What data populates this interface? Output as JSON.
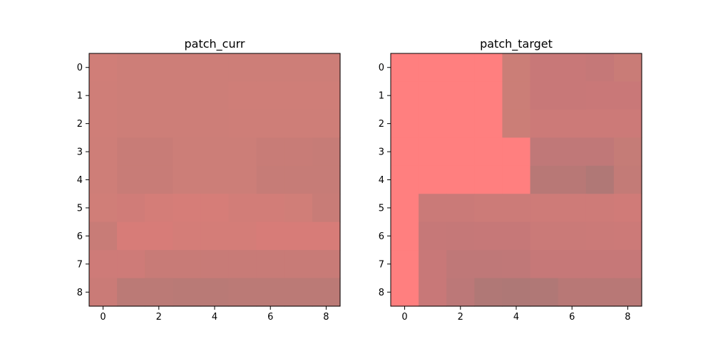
{
  "chart_data": [
    {
      "type": "heatmap",
      "title": "patch_curr",
      "x_ticks": [
        "0",
        "2",
        "4",
        "6",
        "8"
      ],
      "y_ticks": [
        "0",
        "1",
        "2",
        "3",
        "4",
        "5",
        "6",
        "7",
        "8"
      ],
      "xlim": [
        -0.5,
        8.5
      ],
      "ylim": [
        8.5,
        -0.5
      ],
      "grid": false,
      "cell_colors": [
        [
          "#d07e78",
          "#cd7e78",
          "#cd7e78",
          "#cd7e78",
          "#cd7e78",
          "#cd7e78",
          "#cd7e78",
          "#cd7e78",
          "#cd7e78"
        ],
        [
          "#cf7e78",
          "#cd7e78",
          "#cd7e78",
          "#cd7e78",
          "#cd7e78",
          "#cf7e78",
          "#cf7e78",
          "#cf7e78",
          "#cf7e78"
        ],
        [
          "#cf7e78",
          "#cd7e78",
          "#cd7e78",
          "#cd7e78",
          "#cd7e78",
          "#ce7e78",
          "#ce7e78",
          "#ce7e78",
          "#ce7e78"
        ],
        [
          "#ce7e78",
          "#c87c77",
          "#c87c77",
          "#cc7e78",
          "#cc7e78",
          "#cc7e78",
          "#c87c77",
          "#c87c77",
          "#c67c77"
        ],
        [
          "#ce7e78",
          "#c87c77",
          "#c87c77",
          "#cc7e78",
          "#cc7e78",
          "#cc7e78",
          "#c67c77",
          "#c67c77",
          "#c67c77"
        ],
        [
          "#d07e78",
          "#d07c78",
          "#d47d78",
          "#d67d78",
          "#d67d78",
          "#d27d78",
          "#d27d78",
          "#d07e78",
          "#c87c77"
        ],
        [
          "#c87c77",
          "#d77c78",
          "#d77c78",
          "#d47d78",
          "#d47d78",
          "#d47d78",
          "#d77c78",
          "#d77c78",
          "#d77c78"
        ],
        [
          "#ce7b78",
          "#ce7b78",
          "#c87b77",
          "#c87b77",
          "#c87b77",
          "#c87b77",
          "#c87b77",
          "#c87b77",
          "#c87b77"
        ],
        [
          "#ca7b77",
          "#bb7a76",
          "#bb7a76",
          "#b97a76",
          "#b97a76",
          "#bb7a76",
          "#bb7a76",
          "#bb7a76",
          "#bb7a76"
        ]
      ]
    },
    {
      "type": "heatmap",
      "title": "patch_target",
      "x_ticks": [
        "0",
        "2",
        "4",
        "6",
        "8"
      ],
      "y_ticks": [
        "0",
        "1",
        "2",
        "3",
        "4",
        "5",
        "6",
        "7",
        "8"
      ],
      "xlim": [
        -0.5,
        8.5
      ],
      "ylim": [
        8.5,
        -0.5
      ],
      "grid": false,
      "cell_colors": [
        [
          "#ff7f7f",
          "#ff7f7f",
          "#ff7f7f",
          "#ff7f7f",
          "#cb7e77",
          "#c87878",
          "#c87878",
          "#c57878",
          "#c97c77"
        ],
        [
          "#ff7f7f",
          "#ff7f7f",
          "#ff7f7f",
          "#ff7f7f",
          "#cb7e77",
          "#c87878",
          "#c87878",
          "#c97878",
          "#c97878"
        ],
        [
          "#ff7f7f",
          "#ff7f7f",
          "#ff7f7f",
          "#ff7f7f",
          "#cb7e77",
          "#cc7a78",
          "#cc7a78",
          "#cc7a78",
          "#cc7a78"
        ],
        [
          "#ff7f7f",
          "#ff7f7f",
          "#ff7f7f",
          "#ff7f7f",
          "#ff7f7f",
          "#c07878",
          "#c07878",
          "#c07878",
          "#c57c77"
        ],
        [
          "#ff7f7f",
          "#ff7f7f",
          "#ff7f7f",
          "#ff7f7f",
          "#ff7f7f",
          "#b87876",
          "#b87876",
          "#b07876",
          "#c37b77"
        ],
        [
          "#ff7f7f",
          "#ca7a78",
          "#ca7a78",
          "#cc7b78",
          "#cc7b78",
          "#ce7b78",
          "#ce7b78",
          "#ce7b78",
          "#d07b78"
        ],
        [
          "#ff7f7f",
          "#c67878",
          "#c57878",
          "#c67878",
          "#c67878",
          "#ca7a78",
          "#ca7a78",
          "#cb7a78",
          "#cc7a78"
        ],
        [
          "#ff7f7f",
          "#c87878",
          "#bf7878",
          "#bf7878",
          "#c07878",
          "#c67878",
          "#c67878",
          "#c67878",
          "#c67878"
        ],
        [
          "#ff7f7f",
          "#c87878",
          "#bc7878",
          "#b07876",
          "#ae7876",
          "#b07876",
          "#b87876",
          "#b87876",
          "#b87876"
        ]
      ]
    }
  ]
}
